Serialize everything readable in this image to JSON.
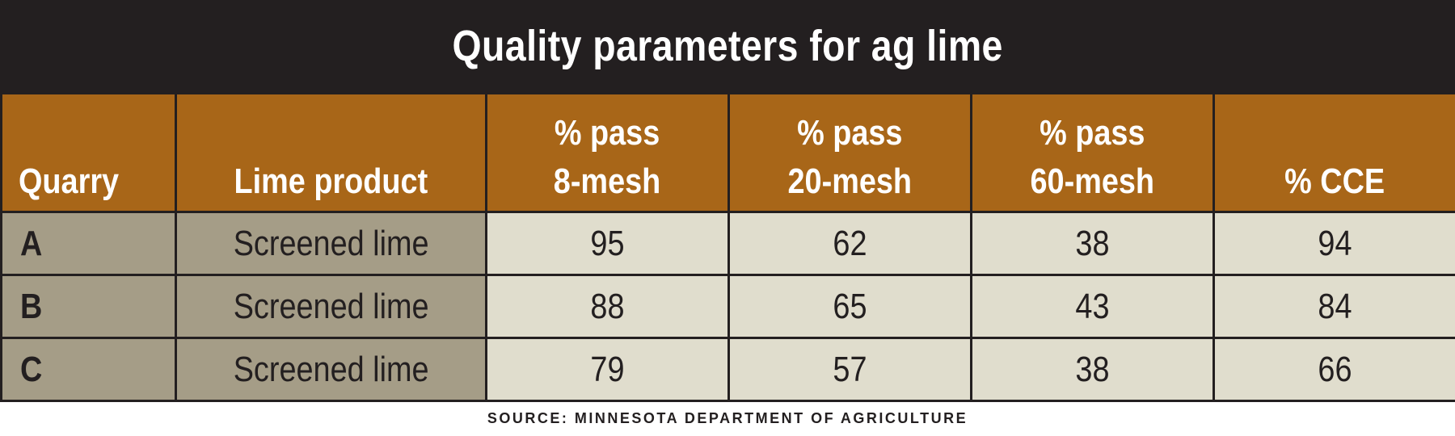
{
  "title": "Quality parameters for ag lime",
  "table": {
    "headers": [
      "Quarry",
      "Lime product",
      "% pass\n8-mesh",
      "% pass\n20-mesh",
      "% pass\n60-mesh",
      "% CCE"
    ],
    "rows": [
      [
        "A",
        "Screened lime",
        "95",
        "62",
        "38",
        "94"
      ],
      [
        "B",
        "Screened lime",
        "88",
        "65",
        "43",
        "84"
      ],
      [
        "C",
        "Screened lime",
        "79",
        "57",
        "38",
        "66"
      ]
    ]
  },
  "source": "SOURCE: MINNESOTA DEPARTMENT OF AGRICULTURE",
  "colors": {
    "title_background": "#231f20",
    "header_background": "#a86618",
    "label_cell_background": "#a59d87",
    "value_cell_background": "#e0ddcd"
  }
}
